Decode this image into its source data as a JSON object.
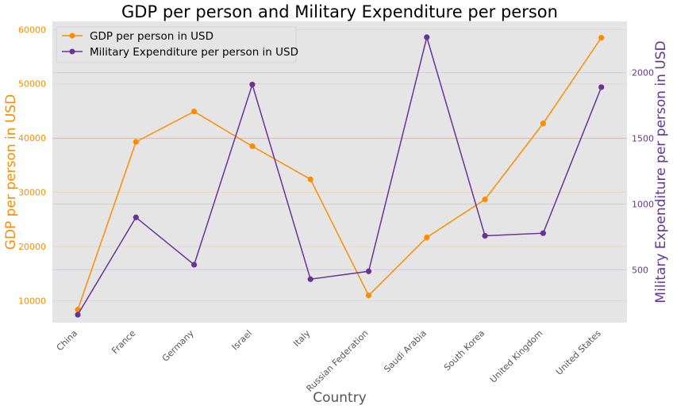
{
  "chart_data": {
    "type": "line",
    "title": "GDP per person and Military Expenditure per person",
    "xlabel": "Country",
    "categories": [
      "China",
      "France",
      "Germany",
      "Israel",
      "Italy",
      "Russian Federation",
      "Saudi Arabia",
      "South Korea",
      "United Kingdom",
      "United States"
    ],
    "y_left": {
      "label": "GDP per person in USD",
      "ticks": [
        10000,
        20000,
        30000,
        40000,
        50000,
        60000
      ],
      "ylim": [
        6000,
        61500
      ],
      "color": "#ff8c00"
    },
    "y_right": {
      "label": "Military Expenditure per person in USD",
      "ticks": [
        500,
        1000,
        1500,
        2000
      ],
      "ylim": [
        100,
        2390
      ],
      "color": "#663399"
    },
    "series": [
      {
        "name": "GDP per person in USD",
        "axis": "left",
        "color": "#ff8c00",
        "values": [
          8400,
          39300,
          44900,
          38500,
          32400,
          11000,
          21700,
          28700,
          42700,
          58500
        ]
      },
      {
        "name": "Military Expenditure per person in USD",
        "axis": "right",
        "color": "#663399",
        "values": [
          160,
          900,
          540,
          1910,
          430,
          490,
          2270,
          760,
          780,
          1890
        ]
      }
    ],
    "grid": true,
    "legend_position": "top-left",
    "background": "#e5e5e5"
  }
}
